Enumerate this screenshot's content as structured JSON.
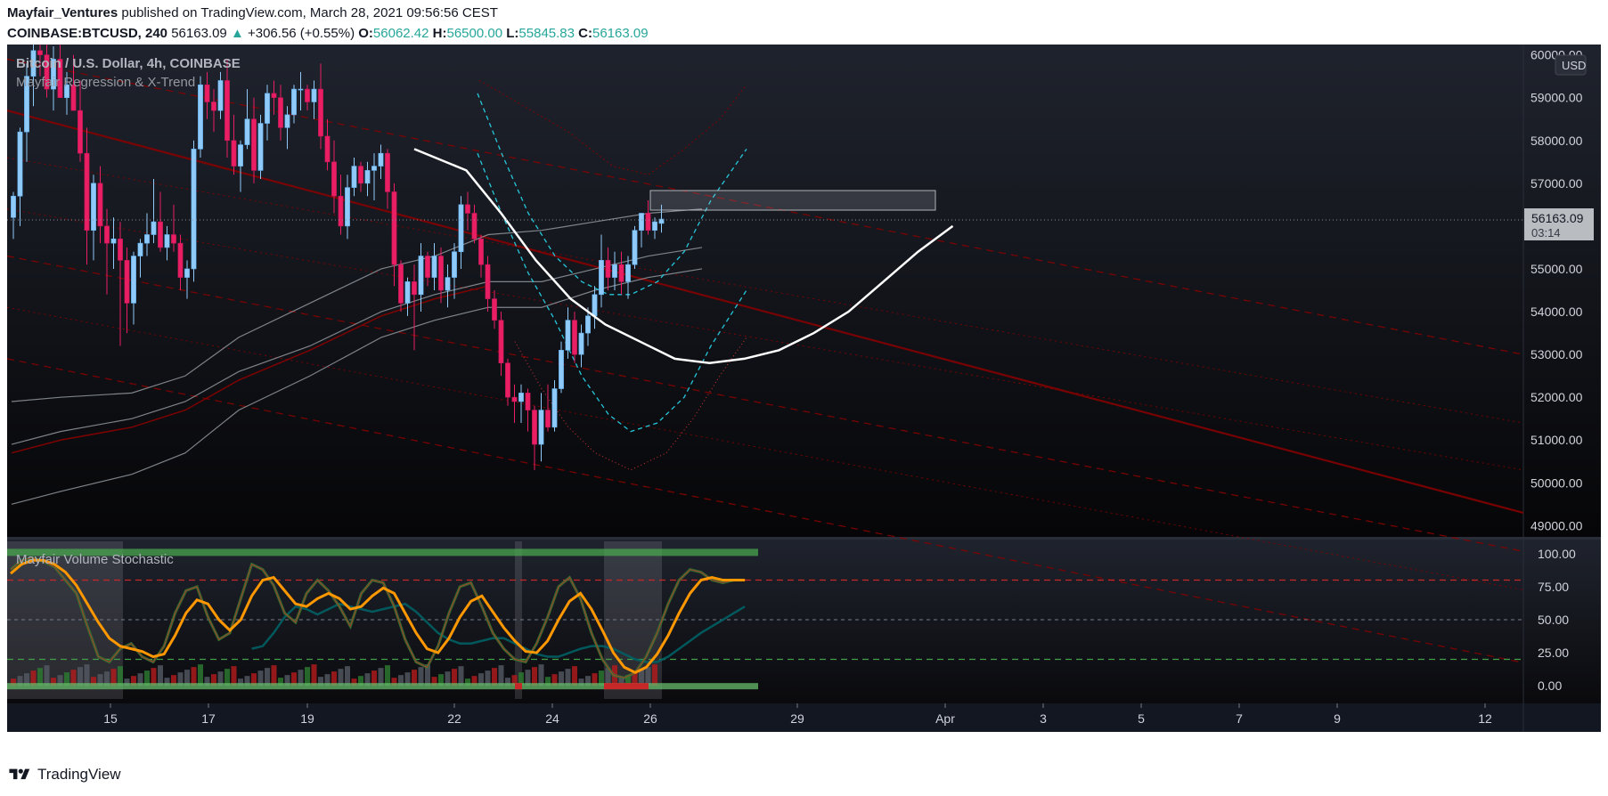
{
  "header": {
    "user": "Mayfair_Ventures",
    "published": " published on TradingView.com, March 28, 2021 09:56:56 CEST",
    "symbol": "COINBASE:BTCUSD, 240",
    "last": "56163.09",
    "change": "+306.56 (+0.55%)",
    "o_label": "O:",
    "o": "56062.42",
    "h_label": "H:",
    "h": "56500.00",
    "l_label": "L:",
    "l": "55845.83",
    "c_label": "C:",
    "c": "56163.09"
  },
  "legend": {
    "title": "Bitcoin / U.S. Dollar, 4h, COINBASE",
    "indicator": "Mayfair Regression & X-Trend",
    "currency": "USD"
  },
  "price_badge": {
    "price": "56163.09",
    "countdown": "03:14"
  },
  "sub_indicator": {
    "title": "Mayfair Volume Stochastic"
  },
  "colors": {
    "background_top": "#1e222d",
    "background_bottom": "#050507",
    "bull": "#90caf9",
    "bear": "#e91e63",
    "regression": "#8b0000",
    "x_trend": "#ffffff",
    "cyan": "#26c6da",
    "stoch_fast": "#2e7d32",
    "stoch_slow": "#ff9800",
    "signal": "#006064"
  },
  "footer": {
    "brand": "TradingView"
  },
  "chart_data": {
    "type": "candlestick",
    "interval": "4h",
    "ylim": [
      48800,
      60200
    ],
    "y_ticks": [
      "49000.00",
      "50000.00",
      "51000.00",
      "52000.00",
      "53000.00",
      "54000.00",
      "55000.00",
      "56000.00",
      "57000.00",
      "58000.00",
      "59000.00",
      "60000.00"
    ],
    "x_ticks": [
      "15",
      "17",
      "19",
      "22",
      "24",
      "26",
      "29",
      "Apr",
      "3",
      "5",
      "7",
      "9",
      "12"
    ],
    "candles_ohlc": [
      [
        56200,
        56800,
        55700,
        56700
      ],
      [
        56700,
        58300,
        56000,
        58200
      ],
      [
        58200,
        59800,
        57500,
        59500
      ],
      [
        59500,
        60500,
        58800,
        60100
      ],
      [
        60100,
        60600,
        59500,
        60000
      ],
      [
        60000,
        60400,
        59000,
        59200
      ],
      [
        59200,
        60200,
        58700,
        59900
      ],
      [
        59900,
        60500,
        59200,
        59000
      ],
      [
        59000,
        59600,
        58600,
        59300
      ],
      [
        59300,
        60000,
        58800,
        58700
      ],
      [
        58700,
        59400,
        57500,
        57700
      ],
      [
        57700,
        58300,
        55100,
        55900
      ],
      [
        55900,
        57200,
        55200,
        57000
      ],
      [
        57000,
        57400,
        55600,
        56000
      ],
      [
        56000,
        56400,
        54400,
        55600
      ],
      [
        55600,
        56200,
        55000,
        55700
      ],
      [
        55700,
        56100,
        53200,
        55200
      ],
      [
        55200,
        55500,
        53500,
        54200
      ],
      [
        54200,
        55400,
        53700,
        55300
      ],
      [
        55300,
        55700,
        54800,
        55600
      ],
      [
        55600,
        56300,
        55300,
        55800
      ],
      [
        55800,
        57100,
        55600,
        56100
      ],
      [
        56100,
        56800,
        55400,
        55500
      ],
      [
        55500,
        56000,
        55200,
        55800
      ],
      [
        55800,
        56500,
        55400,
        55600
      ],
      [
        55600,
        55800,
        54500,
        54800
      ],
      [
        54800,
        55200,
        54300,
        55000
      ],
      [
        55000,
        58000,
        54700,
        57800
      ],
      [
        57800,
        59500,
        57600,
        59300
      ],
      [
        59300,
        59600,
        58500,
        58900
      ],
      [
        58900,
        59200,
        58200,
        58700
      ],
      [
        58700,
        59600,
        58500,
        59400
      ],
      [
        59400,
        59900,
        57600,
        58000
      ],
      [
        58000,
        58600,
        57200,
        57400
      ],
      [
        57400,
        58000,
        56800,
        57900
      ],
      [
        57900,
        59200,
        57800,
        58500
      ],
      [
        58500,
        59000,
        57000,
        57300
      ],
      [
        57300,
        58600,
        57100,
        58400
      ],
      [
        58400,
        59300,
        58000,
        59100
      ],
      [
        59100,
        59400,
        58600,
        59000
      ],
      [
        59000,
        59300,
        58000,
        58300
      ],
      [
        58300,
        58800,
        57800,
        58600
      ],
      [
        58600,
        59300,
        58400,
        59200
      ],
      [
        59200,
        59600,
        58700,
        59200
      ],
      [
        59200,
        59300,
        58700,
        58900
      ],
      [
        58900,
        59400,
        58500,
        59200
      ],
      [
        59200,
        59800,
        57800,
        58100
      ],
      [
        58100,
        58500,
        57300,
        57500
      ],
      [
        57500,
        58000,
        56300,
        56700
      ],
      [
        56700,
        57200,
        55800,
        56000
      ],
      [
        56000,
        57200,
        55700,
        56900
      ],
      [
        56900,
        57600,
        56700,
        57400
      ],
      [
        57400,
        57500,
        56800,
        57000
      ],
      [
        57000,
        57500,
        56700,
        57300
      ],
      [
        57300,
        57700,
        56600,
        57400
      ],
      [
        57400,
        57900,
        57100,
        57700
      ],
      [
        57700,
        57800,
        56400,
        56800
      ],
      [
        56800,
        57000,
        54600,
        55100
      ],
      [
        55100,
        55200,
        54000,
        54200
      ],
      [
        54200,
        54800,
        53900,
        54700
      ],
      [
        54700,
        55100,
        53100,
        54400
      ],
      [
        54400,
        55600,
        54000,
        55300
      ],
      [
        55300,
        55400,
        54600,
        54800
      ],
      [
        54800,
        55600,
        54500,
        55300
      ],
      [
        55300,
        55500,
        54200,
        54500
      ],
      [
        54500,
        55100,
        54100,
        54800
      ],
      [
        54800,
        55600,
        54300,
        55400
      ],
      [
        55400,
        56700,
        55000,
        56500
      ],
      [
        56500,
        56800,
        55900,
        56300
      ],
      [
        56300,
        56500,
        55600,
        55700
      ],
      [
        55700,
        55800,
        54800,
        55100
      ],
      [
        55100,
        55300,
        54000,
        54300
      ],
      [
        54300,
        54500,
        53600,
        53800
      ],
      [
        53800,
        54000,
        52500,
        52800
      ],
      [
        52800,
        52900,
        51800,
        52000
      ],
      [
        52000,
        52300,
        51400,
        51900
      ],
      [
        51900,
        52300,
        51400,
        52100
      ],
      [
        52100,
        52200,
        51200,
        51700
      ],
      [
        51700,
        51800,
        50300,
        50900
      ],
      [
        50900,
        52100,
        50500,
        51700
      ],
      [
        51700,
        52300,
        51200,
        51300
      ],
      [
        51300,
        52400,
        51200,
        52200
      ],
      [
        52200,
        53300,
        52100,
        53100
      ],
      [
        53100,
        54100,
        52900,
        53800
      ],
      [
        53800,
        54000,
        52800,
        53000
      ],
      [
        53000,
        53700,
        52700,
        53500
      ],
      [
        53500,
        54100,
        53200,
        53900
      ],
      [
        53900,
        54600,
        53600,
        54400
      ],
      [
        54400,
        55800,
        54100,
        55200
      ],
      [
        55200,
        55500,
        54500,
        54800
      ],
      [
        54800,
        55400,
        54500,
        55100
      ],
      [
        55100,
        55400,
        54400,
        54700
      ],
      [
        54700,
        55300,
        54300,
        55100
      ],
      [
        55100,
        56000,
        55000,
        55900
      ],
      [
        55900,
        56300,
        55500,
        56300
      ],
      [
        56300,
        56600,
        55800,
        55900
      ],
      [
        55900,
        56200,
        55700,
        56100
      ],
      [
        56062.42,
        56500,
        55845.83,
        56163.09
      ]
    ],
    "x_trend_curve": [
      [
        57800,
        0
      ],
      [
        57300,
        3
      ],
      [
        56300,
        5
      ],
      [
        55200,
        7
      ],
      [
        54300,
        9
      ],
      [
        53700,
        11
      ],
      [
        53300,
        13
      ],
      [
        52900,
        15
      ],
      [
        52800,
        17
      ],
      [
        52900,
        19
      ],
      [
        53100,
        21
      ],
      [
        53500,
        23
      ],
      [
        54000,
        25
      ],
      [
        54700,
        27
      ],
      [
        55400,
        29
      ],
      [
        56000,
        31
      ]
    ],
    "overhead_zone": {
      "price_low": 56350,
      "price_high": 56820
    },
    "stochastic": {
      "ylim": [
        -10,
        108
      ],
      "y_ticks": [
        "100.00",
        "75.00",
        "50.00",
        "25.00",
        "0.00"
      ],
      "levels": {
        "upper": 80,
        "middle": 50,
        "lower": 20
      },
      "fast": [
        88,
        95,
        97,
        94,
        90,
        80,
        70,
        45,
        22,
        18,
        28,
        32,
        22,
        18,
        30,
        55,
        72,
        75,
        52,
        35,
        40,
        66,
        92,
        88,
        76,
        55,
        48,
        70,
        80,
        72,
        60,
        45,
        70,
        80,
        78,
        60,
        35,
        18,
        14,
        30,
        55,
        75,
        78,
        60,
        40,
        28,
        20,
        18,
        32,
        52,
        75,
        82,
        66,
        40,
        20,
        8,
        6,
        10,
        22,
        40,
        62,
        80,
        88,
        86,
        80,
        78,
        80,
        80
      ],
      "slow": [
        85,
        92,
        95,
        95,
        92,
        86,
        76,
        62,
        48,
        36,
        30,
        28,
        26,
        22,
        24,
        38,
        55,
        65,
        62,
        50,
        42,
        50,
        68,
        80,
        82,
        72,
        62,
        60,
        66,
        70,
        66,
        58,
        60,
        68,
        74,
        70,
        55,
        40,
        28,
        25,
        36,
        52,
        64,
        68,
        56,
        44,
        34,
        26,
        25,
        34,
        50,
        64,
        70,
        58,
        42,
        25,
        14,
        10,
        14,
        24,
        38,
        55,
        70,
        80,
        82,
        80,
        80,
        80
      ],
      "signal": [
        null,
        null,
        null,
        null,
        null,
        null,
        null,
        null,
        null,
        null,
        null,
        null,
        null,
        null,
        null,
        null,
        null,
        null,
        null,
        null,
        null,
        null,
        28,
        30,
        40,
        52,
        60,
        58,
        54,
        58,
        62,
        60,
        58,
        56,
        58,
        60,
        62,
        56,
        48,
        40,
        35,
        32,
        32,
        34,
        36,
        36,
        32,
        28,
        24,
        22,
        22,
        25,
        28,
        30,
        30,
        28,
        24,
        20,
        18,
        18,
        22,
        28,
        34,
        40,
        45,
        50,
        55,
        60
      ]
    }
  }
}
